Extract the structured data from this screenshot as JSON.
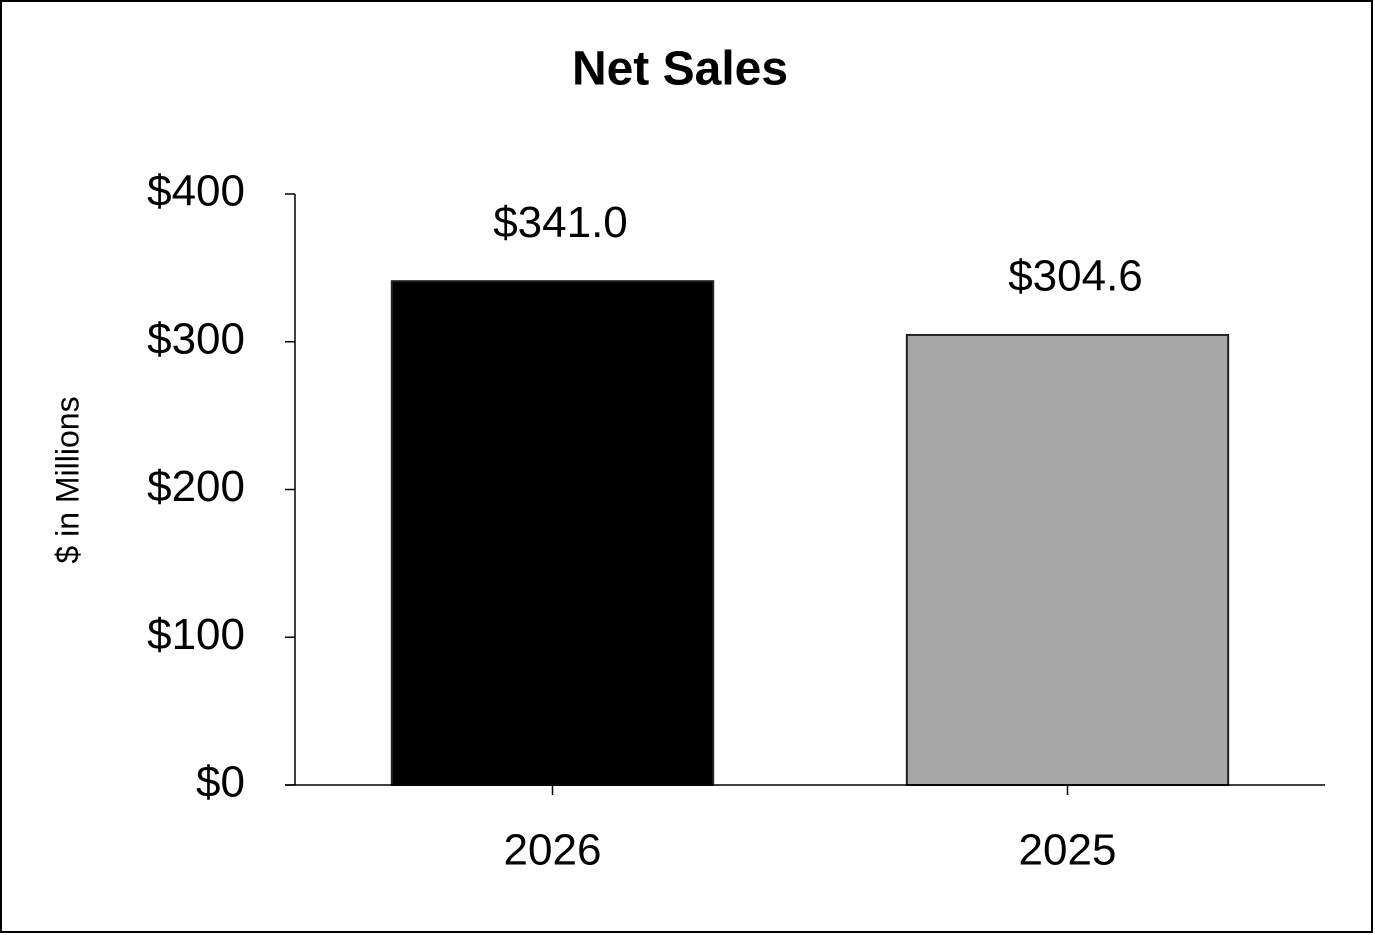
{
  "chart_data": {
    "type": "bar",
    "title": "Net Sales",
    "y_label": "$ in Millions",
    "categories": [
      "2026",
      "2025"
    ],
    "values": [
      341.0,
      304.6
    ],
    "value_labels": [
      "$341.0",
      "$304.6"
    ],
    "colors": [
      "#000000",
      "#a6a6a6"
    ],
    "ylim": [
      0,
      400
    ],
    "yticks": [
      {
        "value": 0,
        "label": "$0"
      },
      {
        "value": 100,
        "label": "$100"
      },
      {
        "value": 200,
        "label": "$200"
      },
      {
        "value": 300,
        "label": "$300"
      },
      {
        "value": 400,
        "label": "$400"
      }
    ],
    "grid": false
  }
}
